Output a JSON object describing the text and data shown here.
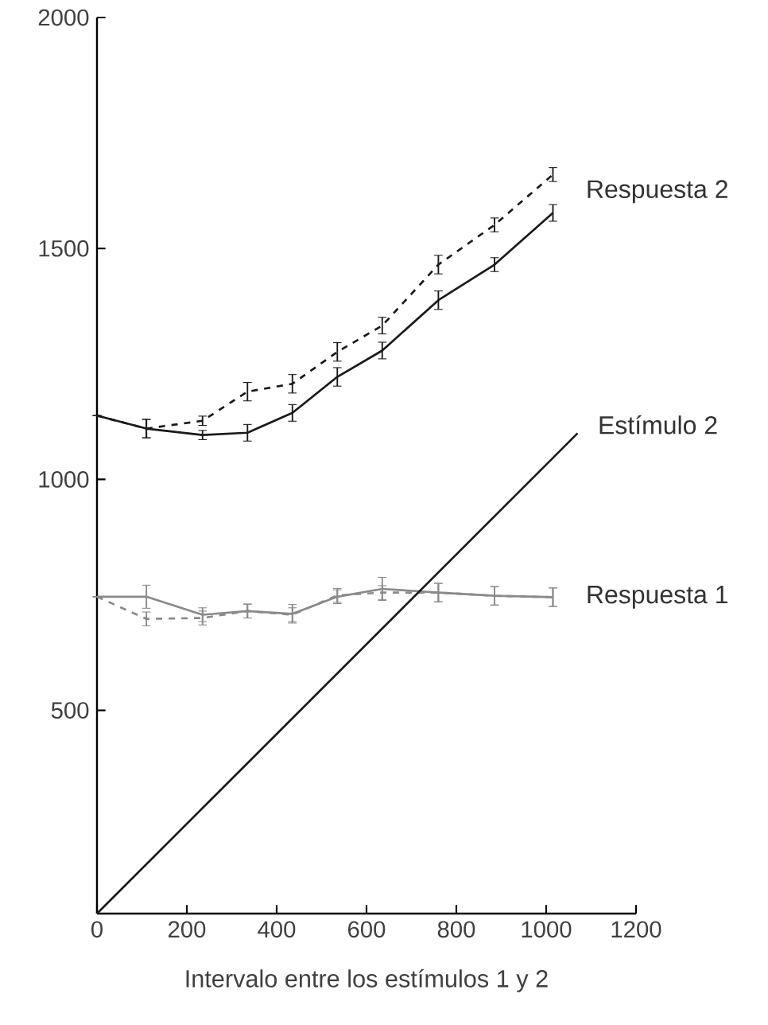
{
  "chart_data": {
    "type": "line",
    "xlabel": "Intervalo entre los estímulos 1 y 2",
    "xlim": [
      0,
      1200
    ],
    "ylim": [
      60,
      2000
    ],
    "xticks": [
      0,
      200,
      400,
      600,
      800,
      1000,
      1200
    ],
    "yticks": [
      500,
      1000,
      1500,
      2000
    ],
    "grid": false,
    "marker": "none",
    "x": [
      0,
      110,
      235,
      335,
      435,
      535,
      635,
      760,
      885,
      1015
    ],
    "series": [
      {
        "name": "Respuesta 2",
        "color": "#1a1a1a",
        "line_style": "solid",
        "values": [
          1138,
          1110,
          1096,
          1101,
          1144,
          1222,
          1279,
          1388,
          1465,
          1577
        ],
        "errors": [
          null,
          20,
          10,
          18,
          18,
          20,
          18,
          20,
          15,
          18
        ]
      },
      {
        "color": "#1a1a1a",
        "line_style": "dashed",
        "values": [
          1138,
          1110,
          1127,
          1190,
          1207,
          1276,
          1333,
          1465,
          1551,
          1660
        ],
        "errors": [
          null,
          20,
          10,
          20,
          20,
          20,
          18,
          20,
          15,
          15
        ]
      },
      {
        "name": "Respuesta 1",
        "color": "#8a8a8a",
        "line_style": "solid",
        "values": [
          746,
          746,
          707,
          715,
          709,
          746,
          763,
          755,
          748,
          745
        ],
        "errors": [
          null,
          25,
          15,
          15,
          20,
          15,
          25,
          20,
          20,
          20
        ]
      },
      {
        "color": "#8a8a8a",
        "line_style": "dashed",
        "values": [
          746,
          698,
          700,
          715,
          707,
          749,
          755,
          755,
          748,
          745
        ],
        "errors": [
          null,
          15,
          15,
          15,
          15,
          15,
          15,
          20,
          20,
          20
        ]
      },
      {
        "name": "Estímulo 2",
        "color": "#1a1a1a",
        "line_style": "solid",
        "x": [
          0,
          1070
        ],
        "values": [
          60,
          1100
        ]
      }
    ]
  }
}
